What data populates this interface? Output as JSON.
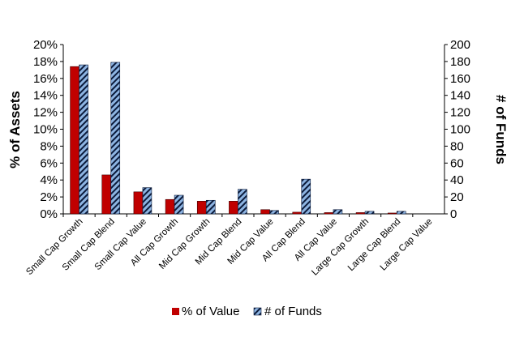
{
  "chart_data": {
    "type": "bar",
    "title": "",
    "xlabel": "",
    "ylabel": "% of Assets",
    "y2label": "# of Funds",
    "ylim": [
      0,
      20
    ],
    "y2lim": [
      0,
      200
    ],
    "yticks": [
      "0%",
      "2%",
      "4%",
      "6%",
      "8%",
      "10%",
      "12%",
      "14%",
      "16%",
      "18%",
      "20%"
    ],
    "y2ticks": [
      "0",
      "20",
      "40",
      "60",
      "80",
      "100",
      "120",
      "140",
      "160",
      "180",
      "200"
    ],
    "categories": [
      "Small Cap Growth",
      "Small Cap Blend",
      "Small Cap Value",
      "All Cap Growth",
      "Mid Cap Growth",
      "Mid Cap Blend",
      "Mid Cap Value",
      "All Cap Blend",
      "All Cap Value",
      "Large Cap Growth",
      "Large Cap Blend",
      "Large Cap Value"
    ],
    "series": [
      {
        "name": "% of Value",
        "axis": "left",
        "unit": "%",
        "color": "#c00000",
        "values": [
          17.4,
          4.6,
          2.6,
          1.7,
          1.5,
          1.5,
          0.5,
          0.2,
          0.15,
          0.15,
          0.1,
          0.0
        ]
      },
      {
        "name": "# of Funds",
        "axis": "right",
        "color": "#8db4e2",
        "pattern": "diagonal-stripes",
        "values": [
          176,
          179,
          31,
          22,
          16,
          29,
          4,
          41,
          5,
          3,
          3,
          0
        ]
      }
    ],
    "grid": false,
    "legend": "bottom"
  }
}
